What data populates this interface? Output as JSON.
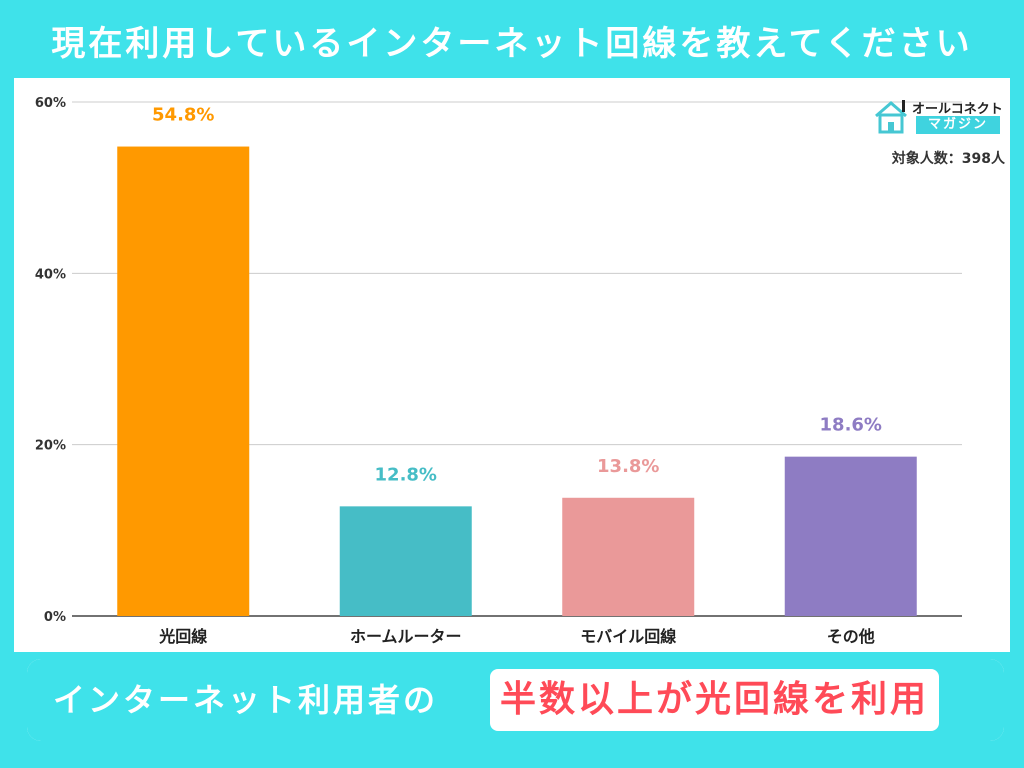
{
  "title": "現在利用しているインターネット回線を教えてください",
  "logo": {
    "brand": "オールコネクト",
    "sub": "マガジン"
  },
  "respondents": "対象人数：398人",
  "footer": {
    "lead": "インターネット利用者の",
    "highlight": "半数以上が光回線を利用"
  },
  "chart_data": {
    "type": "bar",
    "categories": [
      "光回線",
      "ホームルーター",
      "モバイル回線",
      "その他"
    ],
    "values": [
      54.8,
      12.8,
      13.8,
      18.6
    ],
    "value_labels": [
      "54.8%",
      "12.8%",
      "13.8%",
      "18.6%"
    ],
    "colors": [
      "#ff9900",
      "#46bdc6",
      "#ea9999",
      "#8e7cc3"
    ],
    "title": "現在利用しているインターネット回線を教えてください",
    "xlabel": "",
    "ylabel": "",
    "ylim": [
      0,
      60
    ],
    "yticks": [
      0,
      20,
      40,
      60
    ],
    "ytick_labels": [
      "0%",
      "20%",
      "40%",
      "60%"
    ],
    "grid": true,
    "legend": "none"
  }
}
